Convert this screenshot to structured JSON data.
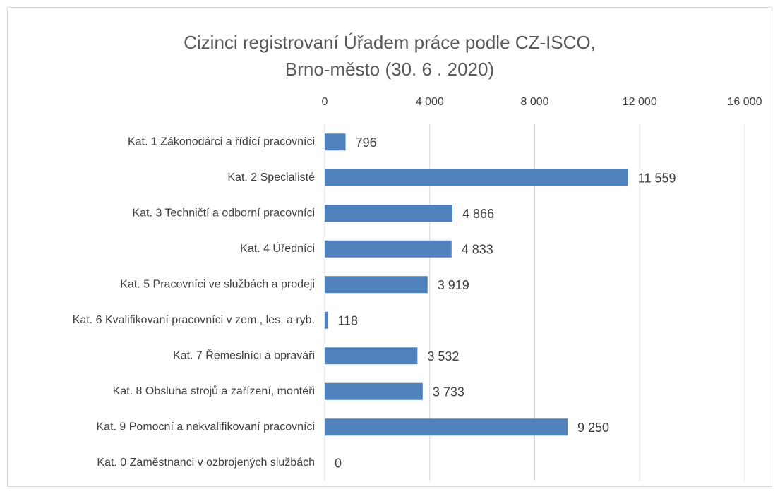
{
  "chart_data": {
    "type": "bar",
    "orientation": "horizontal",
    "title": [
      "Cizinci registrovaní Úřadem práce podle CZ-ISCO,",
      "Brno-město (30. 6 . 2020)"
    ],
    "categories": [
      "Kat. 1  Zákonodárci a řídící pracovníci",
      "Kat. 2  Specialisté",
      "Kat. 3  Techničtí a odborní pracovníci",
      "Kat. 4 Úředníci",
      "Kat. 5  Pracovníci ve službách a prodeji",
      "Kat. 6  Kvalifikovaní pracovníci v zem., les. a ryb.",
      "Kat. 7  Řemeslníci a opraváři",
      "Kat. 8  Obsluha strojů a zařízení, montéři",
      "Kat. 9  Pomocní a nekvalifikovaní pracovníci",
      "Kat. 0  Zaměstnanci v ozbrojených službách"
    ],
    "values": [
      796,
      11559,
      4866,
      4833,
      3919,
      118,
      3532,
      3733,
      9250,
      0
    ],
    "value_labels": [
      "796",
      "11 559",
      "4 866",
      "4 833",
      "3 919",
      "118",
      "3 532",
      "3 733",
      "9 250",
      "0"
    ],
    "color": "#4f81bd",
    "xlim": [
      0,
      16000
    ],
    "xticks": [
      0,
      {
        "value": 4000,
        "label": "4 000"
      },
      {
        "value": 8000,
        "label": "8 000"
      },
      {
        "value": 12000,
        "label": "12 000"
      },
      {
        "value": 16000,
        "label": "16 000"
      }
    ],
    "grid": true
  }
}
